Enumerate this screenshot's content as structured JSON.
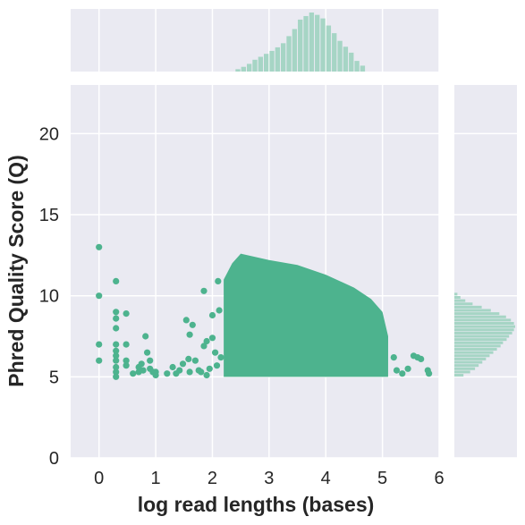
{
  "chart_data": {
    "type": "scatter",
    "kind": "jointplot",
    "xlabel": "log read lengths (bases)",
    "ylabel": "Phred Quality Score (Q)",
    "xlim": [
      -0.5,
      6
    ],
    "ylim": [
      0,
      23
    ],
    "x_ticks": [
      "0",
      "1",
      "2",
      "3",
      "4",
      "5",
      "6"
    ],
    "y_ticks": [
      "0",
      "5",
      "10",
      "15",
      "20"
    ],
    "grid": true,
    "colors": {
      "points": "#4db38e",
      "histogram": "#a6d5c5",
      "background": "#eaeaf2",
      "grid": "#ffffff",
      "text": "#262626"
    },
    "dense_region": {
      "x_range": [
        2.2,
        5.1
      ],
      "y_floor": 5.0,
      "top_edge": [
        [
          2.2,
          11.0
        ],
        [
          2.35,
          12.0
        ],
        [
          2.5,
          12.6
        ],
        [
          3.0,
          12.2
        ],
        [
          3.5,
          11.9
        ],
        [
          4.0,
          11.3
        ],
        [
          4.5,
          10.5
        ],
        [
          4.8,
          9.8
        ],
        [
          5.0,
          9.0
        ],
        [
          5.1,
          7.5
        ]
      ]
    },
    "points": [
      {
        "x": 0.0,
        "y": 13.0
      },
      {
        "x": 0.0,
        "y": 10.0
      },
      {
        "x": 0.0,
        "y": 7.0
      },
      {
        "x": 0.0,
        "y": 6.0
      },
      {
        "x": 0.3,
        "y": 10.9
      },
      {
        "x": 0.3,
        "y": 9.0
      },
      {
        "x": 0.3,
        "y": 8.6
      },
      {
        "x": 0.3,
        "y": 8.0
      },
      {
        "x": 0.3,
        "y": 7.0
      },
      {
        "x": 0.3,
        "y": 6.6
      },
      {
        "x": 0.3,
        "y": 6.3
      },
      {
        "x": 0.3,
        "y": 6.0
      },
      {
        "x": 0.3,
        "y": 5.6
      },
      {
        "x": 0.3,
        "y": 5.3
      },
      {
        "x": 0.3,
        "y": 5.0
      },
      {
        "x": 0.48,
        "y": 8.9
      },
      {
        "x": 0.48,
        "y": 7.0
      },
      {
        "x": 0.48,
        "y": 6.0
      },
      {
        "x": 0.48,
        "y": 5.7
      },
      {
        "x": 0.6,
        "y": 5.2
      },
      {
        "x": 0.7,
        "y": 5.6
      },
      {
        "x": 0.7,
        "y": 5.3
      },
      {
        "x": 0.75,
        "y": 5.8
      },
      {
        "x": 0.78,
        "y": 5.4
      },
      {
        "x": 0.82,
        "y": 7.5
      },
      {
        "x": 0.85,
        "y": 6.5
      },
      {
        "x": 0.9,
        "y": 6.0
      },
      {
        "x": 0.9,
        "y": 5.5
      },
      {
        "x": 0.95,
        "y": 5.3
      },
      {
        "x": 1.0,
        "y": 5.3
      },
      {
        "x": 1.0,
        "y": 5.1
      },
      {
        "x": 1.2,
        "y": 5.2
      },
      {
        "x": 1.3,
        "y": 5.6
      },
      {
        "x": 1.36,
        "y": 5.2
      },
      {
        "x": 1.42,
        "y": 5.4
      },
      {
        "x": 1.48,
        "y": 5.8
      },
      {
        "x": 1.54,
        "y": 8.5
      },
      {
        "x": 1.58,
        "y": 6.1
      },
      {
        "x": 1.6,
        "y": 5.3
      },
      {
        "x": 1.6,
        "y": 7.6
      },
      {
        "x": 1.65,
        "y": 8.2
      },
      {
        "x": 1.7,
        "y": 6.0
      },
      {
        "x": 1.76,
        "y": 5.4
      },
      {
        "x": 1.8,
        "y": 5.3
      },
      {
        "x": 1.85,
        "y": 10.3
      },
      {
        "x": 1.85,
        "y": 6.9
      },
      {
        "x": 1.9,
        "y": 7.2
      },
      {
        "x": 1.9,
        "y": 5.1
      },
      {
        "x": 1.95,
        "y": 5.5
      },
      {
        "x": 2.0,
        "y": 8.8
      },
      {
        "x": 2.0,
        "y": 7.4
      },
      {
        "x": 2.05,
        "y": 6.5
      },
      {
        "x": 2.08,
        "y": 5.7
      },
      {
        "x": 2.1,
        "y": 10.9
      },
      {
        "x": 2.12,
        "y": 9.1
      },
      {
        "x": 2.15,
        "y": 6.2
      },
      {
        "x": 5.2,
        "y": 6.2
      },
      {
        "x": 5.25,
        "y": 5.4
      },
      {
        "x": 5.35,
        "y": 5.2
      },
      {
        "x": 5.45,
        "y": 5.5
      },
      {
        "x": 5.55,
        "y": 6.3
      },
      {
        "x": 5.62,
        "y": 6.2
      },
      {
        "x": 5.68,
        "y": 6.1
      },
      {
        "x": 5.8,
        "y": 5.4
      },
      {
        "x": 5.82,
        "y": 5.2
      }
    ],
    "marginal_x": {
      "bin_width": 0.1,
      "bins_start": [
        2.4,
        2.5,
        2.6,
        2.7,
        2.8,
        2.9,
        3.0,
        3.1,
        3.2,
        3.3,
        3.4,
        3.5,
        3.6,
        3.7,
        3.8,
        3.9,
        4.0,
        4.1,
        4.2,
        4.3,
        4.4,
        4.5,
        4.6
      ],
      "density": [
        0.04,
        0.08,
        0.13,
        0.2,
        0.25,
        0.3,
        0.35,
        0.41,
        0.48,
        0.6,
        0.72,
        0.88,
        0.94,
        1.0,
        0.96,
        0.9,
        0.78,
        0.65,
        0.52,
        0.42,
        0.32,
        0.18,
        0.1
      ]
    },
    "marginal_y": {
      "bin_width": 0.2,
      "bins_start": [
        5.0,
        5.2,
        5.4,
        5.6,
        5.8,
        6.0,
        6.2,
        6.4,
        6.6,
        6.8,
        7.0,
        7.2,
        7.4,
        7.6,
        7.8,
        8.0,
        8.2,
        8.4,
        8.6,
        8.8,
        9.0,
        9.2,
        9.4,
        9.6,
        9.8,
        10.0
      ],
      "density": [
        0.15,
        0.26,
        0.34,
        0.4,
        0.46,
        0.52,
        0.58,
        0.64,
        0.7,
        0.76,
        0.8,
        0.86,
        0.9,
        0.95,
        0.98,
        1.0,
        0.98,
        0.93,
        0.85,
        0.74,
        0.6,
        0.45,
        0.3,
        0.18,
        0.1,
        0.05
      ]
    }
  }
}
